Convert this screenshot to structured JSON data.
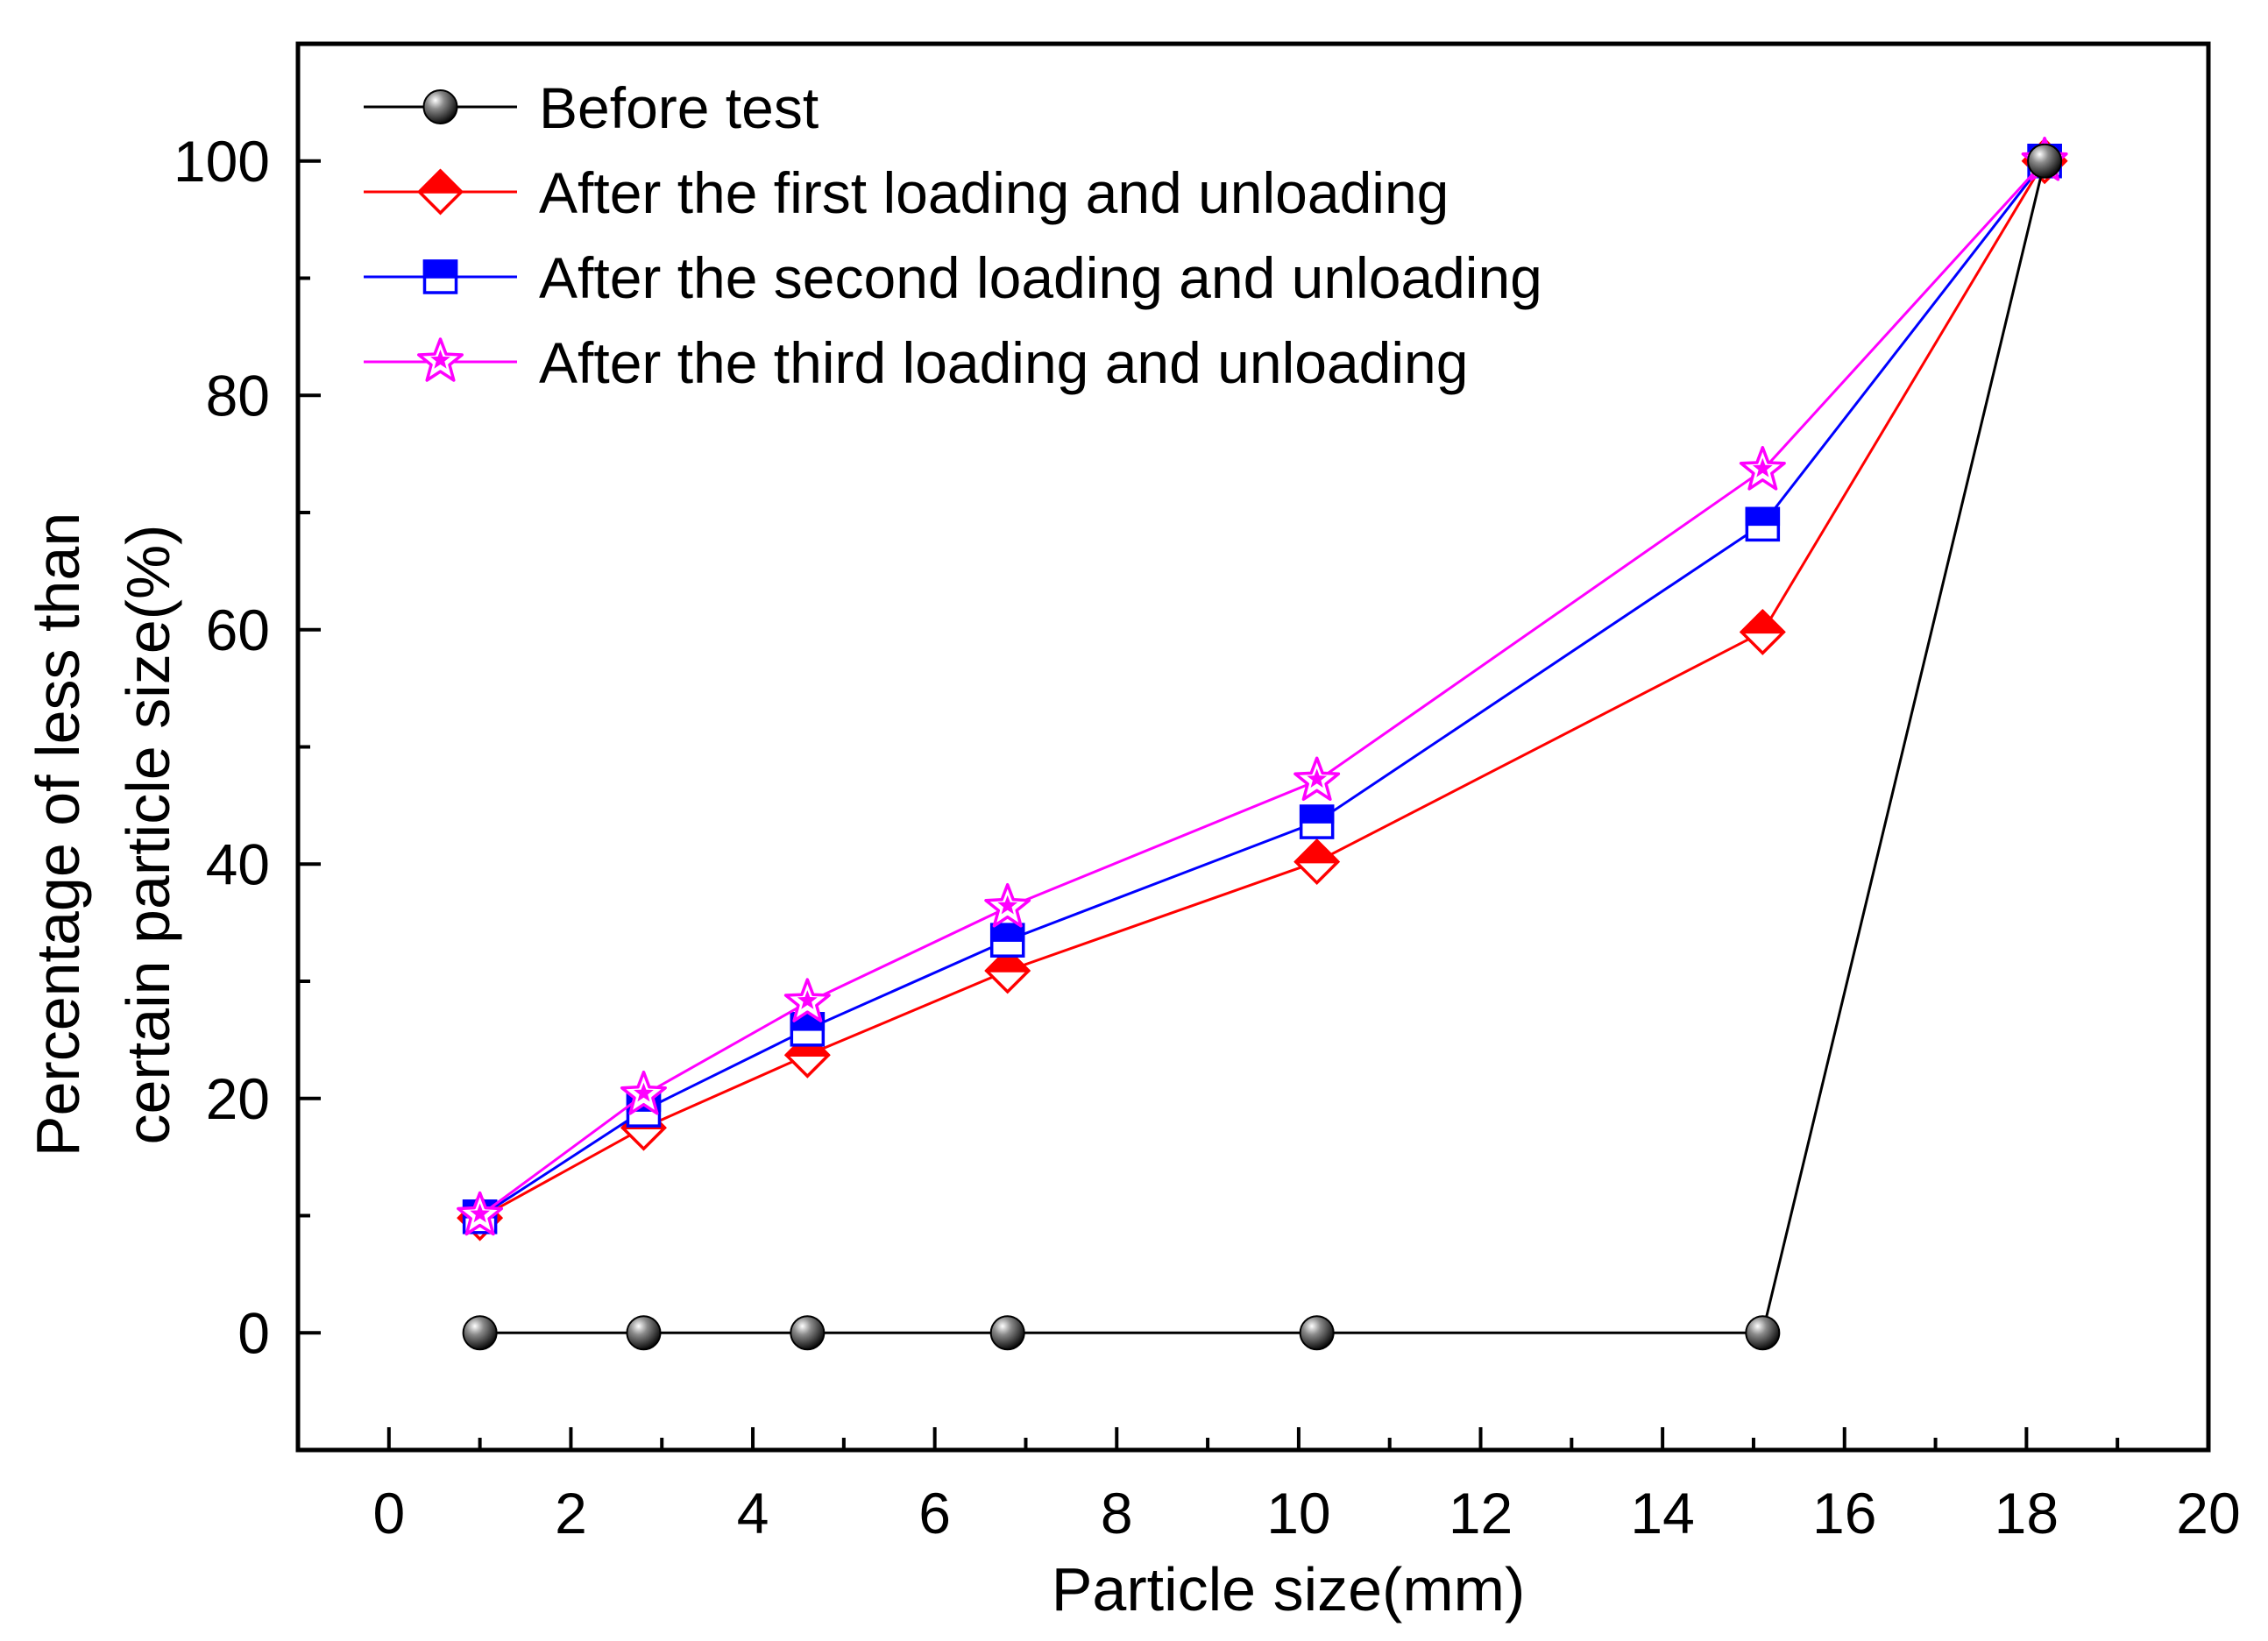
{
  "chart_data": {
    "type": "line",
    "xlabel": "Particle size(mm)",
    "ylabel_lines": [
      "Percentage of less than",
      "certain particle size(%)"
    ],
    "xlim": [
      -1,
      20
    ],
    "ylim": [
      -10,
      110
    ],
    "xticks": [
      0,
      2,
      4,
      6,
      8,
      10,
      12,
      14,
      16,
      18,
      20
    ],
    "yticks": [
      0,
      20,
      40,
      60,
      80,
      100
    ],
    "x": [
      1,
      2.8,
      4.6,
      6.8,
      10.2,
      15.1,
      18.2
    ],
    "series": [
      {
        "name": "Before test",
        "color": "#000000",
        "marker": "sphere",
        "values": [
          0,
          0,
          0,
          0,
          0,
          0,
          100
        ]
      },
      {
        "name": "After the first loading and unloading",
        "color": "#ff0000",
        "marker": "diamond",
        "values": [
          9.8,
          17.5,
          23.7,
          30.9,
          40.2,
          59.8,
          100
        ]
      },
      {
        "name": "After the second loading and unloading",
        "color": "#0000ff",
        "marker": "square",
        "values": [
          9.9,
          19.0,
          25.9,
          33.5,
          43.6,
          69.0,
          100
        ]
      },
      {
        "name": "After the third loading and unloading",
        "color": "#ff00ff",
        "marker": "star",
        "values": [
          10.0,
          20.3,
          28.2,
          36.3,
          47.1,
          73.6,
          100
        ]
      }
    ],
    "legend_position": "top-left",
    "grid": false
  }
}
